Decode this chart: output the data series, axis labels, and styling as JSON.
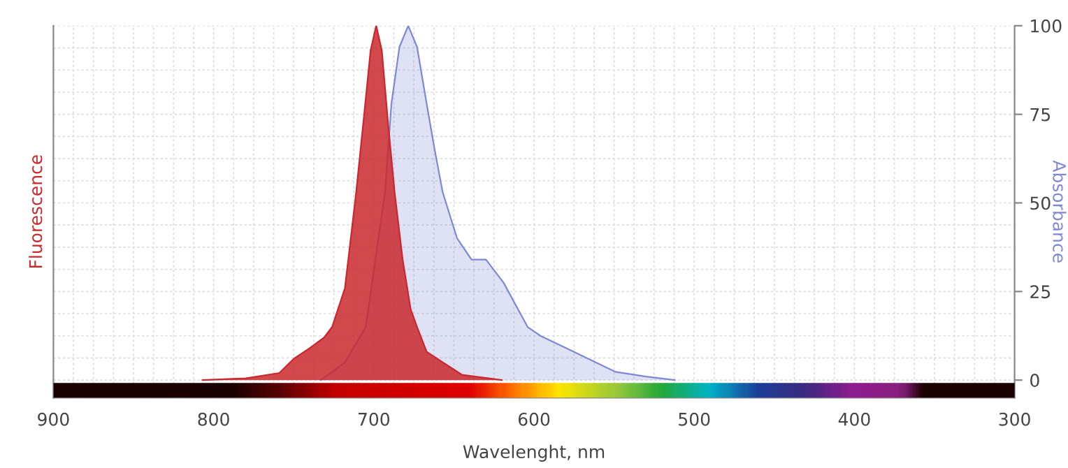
{
  "chart_data": {
    "type": "area",
    "xlabel": "Wavelenght, nm",
    "ylabel": "Fluorescence",
    "y2label": "Absorbance",
    "xlim": [
      900,
      300
    ],
    "xticks": [
      900,
      800,
      700,
      600,
      500,
      400,
      300
    ],
    "ylim": [
      -5,
      100
    ],
    "yticks": [
      0,
      25,
      50,
      75,
      100
    ],
    "grid": true,
    "series": [
      {
        "color": "#7f89d3",
        "x": [
          733,
          718,
          705,
          693,
          689,
          684,
          678.5,
          673,
          667,
          662,
          657,
          648,
          639,
          630,
          619,
          604,
          596,
          573,
          549,
          530,
          512
        ],
        "values": [
          0,
          5,
          15,
          53,
          78,
          94,
          100,
          94,
          78,
          65,
          53,
          40,
          34,
          34,
          27.5,
          15,
          12.5,
          7.5,
          2.3,
          1,
          0
        ]
      },
      {
        "color": "#c9282e",
        "x": [
          807,
          780,
          759,
          750,
          740,
          731,
          726,
          718,
          711,
          706,
          702,
          698.5,
          695,
          691,
          687,
          682,
          677,
          673,
          667,
          657,
          645,
          620
        ],
        "values": [
          0,
          0.5,
          2,
          6,
          9,
          12,
          15,
          26,
          53,
          75,
          93,
          100,
          93,
          72,
          53,
          34,
          20,
          15,
          8,
          5,
          1.5,
          0
        ]
      }
    ]
  }
}
